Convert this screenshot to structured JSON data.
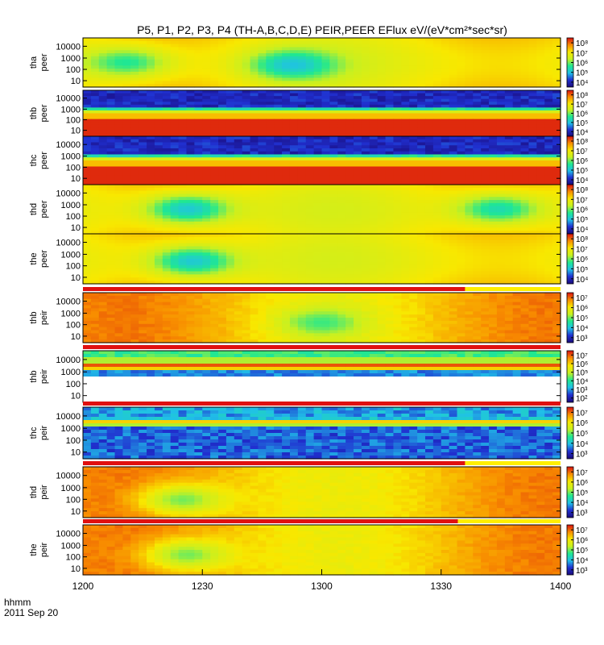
{
  "chart_data": {
    "type": "heatmap",
    "title": "P5, P1, P2, P3, P4 (TH-A,B,C,D,E) PEIR,PEER EFlux eV/(eV*cm²*sec*sr)",
    "x_axis": {
      "ticks": [
        "1200",
        "1230",
        "1300",
        "1330",
        "1400"
      ],
      "range": [
        "12:00",
        "14:00"
      ],
      "left_label": "hhmm",
      "date": "2011 Sep 20"
    },
    "y_axis": {
      "scale": "log",
      "ticks": [
        "10",
        "100",
        "1000",
        "10000"
      ],
      "range": [
        5,
        30000
      ]
    },
    "colormap": [
      "#1a0a7a",
      "#2030d0",
      "#20c0e8",
      "#20e890",
      "#c8f020",
      "#f8e800",
      "#f88c00",
      "#d81010"
    ],
    "panels": [
      {
        "probe": "tha",
        "quantity": "peer",
        "cbar": [
          "10⁴",
          "10⁵",
          "10⁶",
          "10⁷",
          "10⁸"
        ],
        "pattern": "quiet",
        "spots": [
          {
            "x": 0.09,
            "y": 0.5,
            "level": 0.42
          },
          {
            "x": 0.44,
            "y": 0.55,
            "level": 0.3
          }
        ],
        "bar": null
      },
      {
        "probe": "thb",
        "quantity": "peer",
        "cbar": [
          "10⁴",
          "10⁵",
          "10⁶",
          "10⁷",
          "10⁸"
        ],
        "pattern": "solarwind",
        "spots": [],
        "bar": null
      },
      {
        "probe": "thc",
        "quantity": "peer",
        "cbar": [
          "10⁴",
          "10⁵",
          "10⁶",
          "10⁷",
          "10⁸"
        ],
        "pattern": "solarwind",
        "spots": [],
        "bar": null
      },
      {
        "probe": "thd",
        "quantity": "peer",
        "cbar": [
          "10⁴",
          "10⁵",
          "10⁶",
          "10⁷",
          "10⁸"
        ],
        "pattern": "quiet",
        "spots": [
          {
            "x": 0.22,
            "y": 0.5,
            "level": 0.32
          },
          {
            "x": 0.87,
            "y": 0.5,
            "level": 0.38
          }
        ],
        "bar": null
      },
      {
        "probe": "the",
        "quantity": "peer",
        "cbar": [
          "10⁴",
          "10⁵",
          "10⁶",
          "10⁷",
          "10⁸"
        ],
        "pattern": "quiet",
        "spots": [
          {
            "x": 0.23,
            "y": 0.55,
            "level": 0.32
          }
        ],
        "bar": null
      },
      {
        "probe": "thb",
        "quantity": "peir",
        "cbar": [
          "10³",
          "10⁴",
          "10⁵",
          "10⁶",
          "10⁷"
        ],
        "pattern": "hot",
        "spots": [
          {
            "x": 0.5,
            "y": 0.6,
            "level": 0.45
          }
        ],
        "bar": [
          0.0,
          0.8
        ]
      },
      {
        "probe": "thb",
        "quantity": "peir",
        "cbar": [
          "10²",
          "10³",
          "10⁴",
          "10⁵",
          "10⁶",
          "10⁷"
        ],
        "pattern": "bands",
        "spots": [],
        "bar": [
          0.0,
          1.0
        ]
      },
      {
        "probe": "thc",
        "quantity": "peir",
        "cbar": [
          "10³",
          "10⁴",
          "10⁵",
          "10⁶",
          "10⁷"
        ],
        "pattern": "lowbands",
        "spots": [],
        "bar": [
          0.0,
          1.0
        ]
      },
      {
        "probe": "thd",
        "quantity": "peir",
        "cbar": [
          "10³",
          "10⁴",
          "10⁵",
          "10⁶",
          "10⁷"
        ],
        "pattern": "hot",
        "spots": [
          {
            "x": 0.21,
            "y": 0.65,
            "level": 0.5
          }
        ],
        "bar": [
          0.0,
          0.8
        ]
      },
      {
        "probe": "the",
        "quantity": "peir",
        "cbar": [
          "10³",
          "10⁴",
          "10⁵",
          "10⁶",
          "10⁷"
        ],
        "pattern": "hot",
        "spots": [
          {
            "x": 0.22,
            "y": 0.6,
            "level": 0.5
          }
        ],
        "bar": [
          0.0,
          0.785
        ]
      }
    ]
  }
}
